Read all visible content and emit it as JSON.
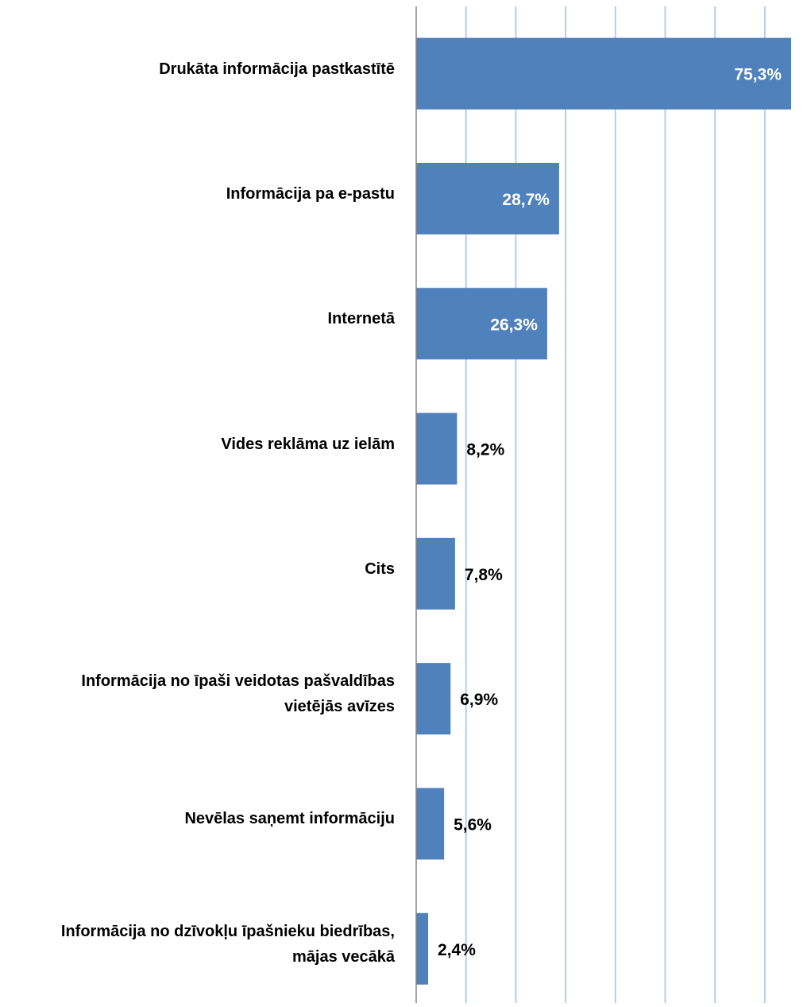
{
  "chart_data": {
    "type": "bar",
    "orientation": "horizontal",
    "categories": [
      "Drukāta informācija pastkastītē",
      "Informācija pa e-pastu",
      "Internetā",
      "Vides reklāma uz ielām",
      "Cits",
      "Informācija no īpaši veidotas pašvaldības\nvietējās avīzes",
      "Nevēlas saņemt informāciju",
      "Informācija no dzīvokļu īpašnieku biedrības,\nmājas vecākā"
    ],
    "values": [
      75.3,
      28.7,
      26.3,
      8.2,
      7.8,
      6.9,
      5.6,
      2.4
    ],
    "data_labels": [
      "75,3%",
      "28,7%",
      "26,3%",
      "8,2%",
      "7,8%",
      "6,9%",
      "5,6%",
      "2,4%"
    ],
    "xlim": [
      0,
      80
    ],
    "grid": true,
    "legend": "none",
    "colors": {
      "bar": "#4F81BD",
      "gridline": "#B9CDE5",
      "axis": "#868686",
      "label_inside": "#FFFFFF",
      "label_outside": "#000000"
    }
  }
}
